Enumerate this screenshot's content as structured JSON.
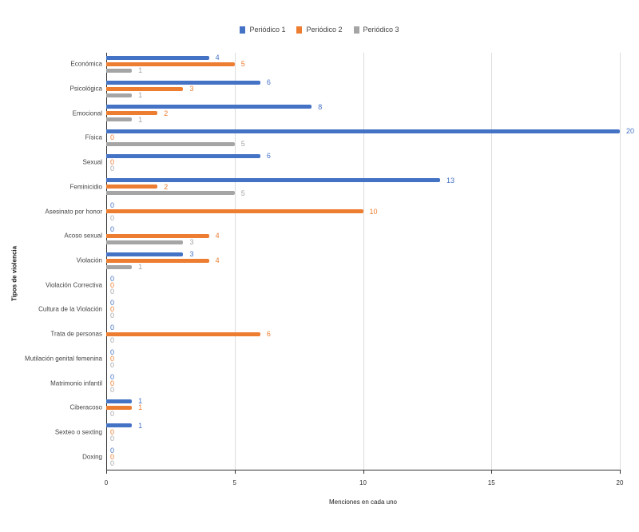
{
  "chart_data": {
    "type": "bar",
    "orientation": "horizontal",
    "title": "",
    "xlabel": "Menciones en cada uno",
    "ylabel": "Tipos de violencia",
    "xlim": [
      0,
      20
    ],
    "xticks": [
      0,
      5,
      10,
      15,
      20
    ],
    "grid": true,
    "legend_position": "top",
    "categories": [
      "Económica",
      "Psicológica",
      "Emocional",
      "Física",
      "Sexual",
      "Feminicidio",
      "Asesinato por honor",
      "Acoso sexual",
      "Violación",
      "Violación Correctiva",
      "Cultura de la Violación",
      "Trata de personas",
      "Mutilación genital femenina",
      "Matrimonio infantil",
      "Ciberacoso",
      "Sexteo o sexting",
      "Doxing"
    ],
    "series": [
      {
        "name": "Periódico 1",
        "color": "#4472c4",
        "values": [
          4,
          6,
          8,
          20,
          6,
          13,
          0,
          0,
          3,
          0,
          0,
          0,
          0,
          0,
          1,
          1,
          0
        ]
      },
      {
        "name": "Periódico 2",
        "color": "#ed7d31",
        "values": [
          5,
          3,
          2,
          0,
          0,
          2,
          10,
          4,
          4,
          0,
          0,
          6,
          0,
          0,
          1,
          0,
          0
        ]
      },
      {
        "name": "Periódico 3",
        "color": "#a5a5a5",
        "values": [
          1,
          1,
          1,
          5,
          0,
          5,
          0,
          3,
          1,
          0,
          0,
          0,
          0,
          0,
          0,
          0,
          0
        ]
      }
    ]
  }
}
